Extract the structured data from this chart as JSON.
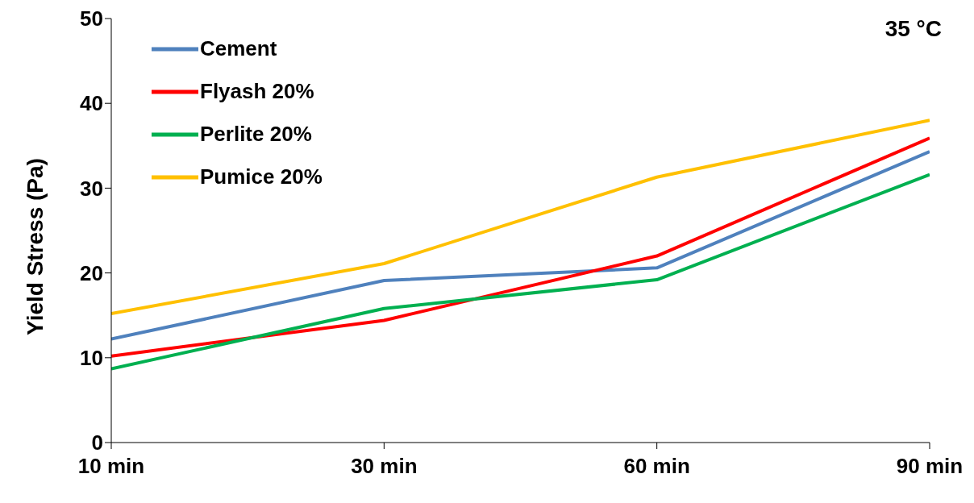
{
  "chart_data": {
    "type": "line",
    "ylabel": "Yield Stress (Pa)",
    "annotations": [
      "35 °C"
    ],
    "categories": [
      "10 min",
      "30 min",
      "60 min",
      "90 min"
    ],
    "series": [
      {
        "name": "Cement",
        "color": "#4f81bd",
        "values": [
          12.2,
          19.1,
          20.6,
          34.3
        ]
      },
      {
        "name": "Flyash 20%",
        "color": "#ff0000",
        "values": [
          10.2,
          14.4,
          22.0,
          35.9
        ]
      },
      {
        "name": "Perlite 20%",
        "color": "#00b050",
        "values": [
          8.7,
          15.8,
          19.2,
          31.6
        ]
      },
      {
        "name": "Pumice 20%",
        "color": "#ffc000",
        "values": [
          15.2,
          21.1,
          31.3,
          38.0
        ]
      }
    ],
    "ylim": [
      0,
      50
    ],
    "yticks": [
      0,
      10,
      20,
      30,
      40,
      50
    ],
    "grid": false,
    "legend": "top left",
    "marker": "none",
    "line_style": "solid"
  }
}
